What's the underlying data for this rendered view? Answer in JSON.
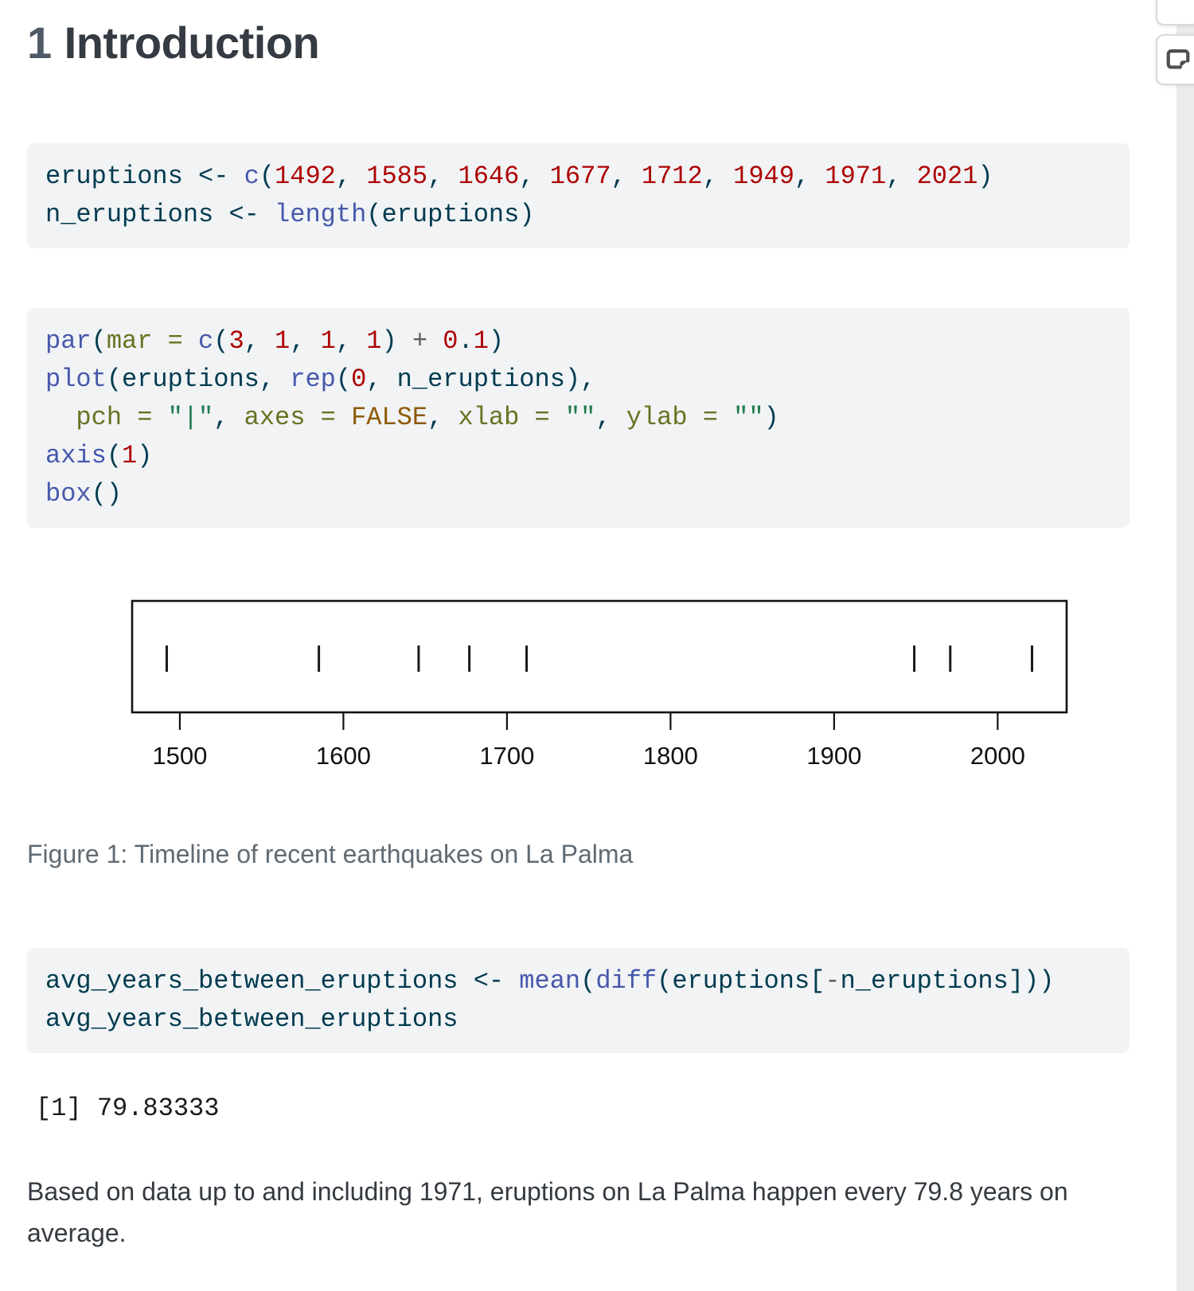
{
  "theme": {
    "code_bg": "#f1f3f5",
    "body_text": "#343a40",
    "caption_text": "#5f6a73",
    "heading_number": "#4f5a66",
    "heading_text": "#343b42",
    "sidebar_strip_bg": "#ebebeb",
    "icon_color": "#4f4f4f",
    "syntax": {
      "tx": "#003B4F",
      "fu": "#4758AB",
      "dv": "#AD0000",
      "st": "#20794D",
      "at": "#657422",
      "cn": "#8f5902",
      "sc": "#5E5E5E"
    }
  },
  "heading": {
    "number": "1",
    "title": "Introduction"
  },
  "code_blocks": [
    {
      "name": "eruptions-definition",
      "lines": [
        [
          {
            "c": "tx",
            "t": "eruptions <- "
          },
          {
            "c": "fu",
            "t": "c"
          },
          {
            "c": "tx",
            "t": "("
          },
          {
            "c": "dv",
            "t": "1492"
          },
          {
            "c": "tx",
            "t": ", "
          },
          {
            "c": "dv",
            "t": "1585"
          },
          {
            "c": "tx",
            "t": ", "
          },
          {
            "c": "dv",
            "t": "1646"
          },
          {
            "c": "tx",
            "t": ", "
          },
          {
            "c": "dv",
            "t": "1677"
          },
          {
            "c": "tx",
            "t": ", "
          },
          {
            "c": "dv",
            "t": "1712"
          },
          {
            "c": "tx",
            "t": ", "
          },
          {
            "c": "dv",
            "t": "1949"
          },
          {
            "c": "tx",
            "t": ", "
          },
          {
            "c": "dv",
            "t": "1971"
          },
          {
            "c": "tx",
            "t": ", "
          },
          {
            "c": "dv",
            "t": "2021"
          },
          {
            "c": "tx",
            "t": ")"
          }
        ],
        [
          {
            "c": "tx",
            "t": "n_eruptions <- "
          },
          {
            "c": "fu",
            "t": "length"
          },
          {
            "c": "tx",
            "t": "(eruptions)"
          }
        ]
      ]
    },
    {
      "name": "timeline-plot-code",
      "lines": [
        [
          {
            "c": "fu",
            "t": "par"
          },
          {
            "c": "tx",
            "t": "("
          },
          {
            "c": "at",
            "t": "mar ="
          },
          {
            "c": "tx",
            "t": " "
          },
          {
            "c": "fu",
            "t": "c"
          },
          {
            "c": "tx",
            "t": "("
          },
          {
            "c": "dv",
            "t": "3"
          },
          {
            "c": "tx",
            "t": ", "
          },
          {
            "c": "dv",
            "t": "1"
          },
          {
            "c": "tx",
            "t": ", "
          },
          {
            "c": "dv",
            "t": "1"
          },
          {
            "c": "tx",
            "t": ", "
          },
          {
            "c": "dv",
            "t": "1"
          },
          {
            "c": "tx",
            "t": ") "
          },
          {
            "c": "sc",
            "t": "+"
          },
          {
            "c": "tx",
            "t": " "
          },
          {
            "c": "dv",
            "t": "0"
          },
          {
            "c": "tx",
            "t": "."
          },
          {
            "c": "dv",
            "t": "1"
          },
          {
            "c": "tx",
            "t": ")"
          }
        ],
        [
          {
            "c": "fu",
            "t": "plot"
          },
          {
            "c": "tx",
            "t": "(eruptions, "
          },
          {
            "c": "fu",
            "t": "rep"
          },
          {
            "c": "tx",
            "t": "("
          },
          {
            "c": "dv",
            "t": "0"
          },
          {
            "c": "tx",
            "t": ", n_eruptions),"
          }
        ],
        [
          {
            "c": "tx",
            "t": "  "
          },
          {
            "c": "at",
            "t": "pch ="
          },
          {
            "c": "tx",
            "t": " "
          },
          {
            "c": "st",
            "t": "\"|\""
          },
          {
            "c": "tx",
            "t": ", "
          },
          {
            "c": "at",
            "t": "axes ="
          },
          {
            "c": "tx",
            "t": " "
          },
          {
            "c": "cn",
            "t": "FALSE"
          },
          {
            "c": "tx",
            "t": ", "
          },
          {
            "c": "at",
            "t": "xlab ="
          },
          {
            "c": "tx",
            "t": " "
          },
          {
            "c": "st",
            "t": "\"\""
          },
          {
            "c": "tx",
            "t": ", "
          },
          {
            "c": "at",
            "t": "ylab ="
          },
          {
            "c": "tx",
            "t": " "
          },
          {
            "c": "st",
            "t": "\"\""
          },
          {
            "c": "tx",
            "t": ")"
          }
        ],
        [
          {
            "c": "fu",
            "t": "axis"
          },
          {
            "c": "tx",
            "t": "("
          },
          {
            "c": "dv",
            "t": "1"
          },
          {
            "c": "tx",
            "t": ")"
          }
        ],
        [
          {
            "c": "fu",
            "t": "box"
          },
          {
            "c": "tx",
            "t": "()"
          }
        ]
      ]
    },
    {
      "name": "avg-years-code",
      "lines": [
        [
          {
            "c": "tx",
            "t": "avg_years_between_eruptions <- "
          },
          {
            "c": "fu",
            "t": "mean"
          },
          {
            "c": "tx",
            "t": "("
          },
          {
            "c": "fu",
            "t": "diff"
          },
          {
            "c": "tx",
            "t": "(eruptions["
          },
          {
            "c": "sc",
            "t": "-"
          },
          {
            "c": "tx",
            "t": "n_eruptions]))"
          }
        ],
        [
          {
            "c": "tx",
            "t": "avg_years_between_eruptions"
          }
        ]
      ]
    }
  ],
  "figure": {
    "caption": "Figure 1: Timeline of recent earthquakes on La Palma"
  },
  "chart_data": {
    "type": "scatter",
    "title": "",
    "x": [
      1492,
      1585,
      1646,
      1677,
      1712,
      1949,
      1971,
      2021
    ],
    "y": [
      0,
      0,
      0,
      0,
      0,
      0,
      0,
      0
    ],
    "marker": "|",
    "xlabel": "",
    "ylabel": "",
    "xlim": [
      1470.84,
      2042.16
    ],
    "x_ticks": [
      1500,
      1600,
      1700,
      1800,
      1900,
      2000
    ],
    "axes_shown": [
      "x"
    ],
    "frame_box": true,
    "grid": false,
    "legend": false
  },
  "output": {
    "text": "[1] 79.83333"
  },
  "paragraph": {
    "text": "Based on data up to and including 1971, eruptions on La Palma happen every 79.8 years on average."
  }
}
